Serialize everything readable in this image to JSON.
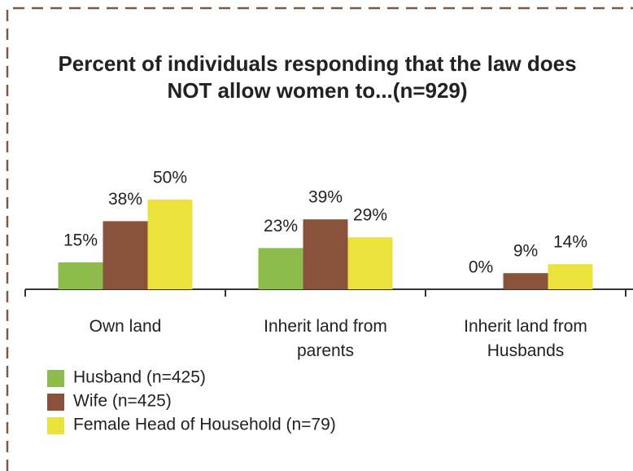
{
  "chart_data": {
    "type": "bar",
    "title": "Percent of individuals responding that the law does NOT allow women to...(n=929)",
    "categories": [
      "Own land",
      "Inherit land from parents",
      "Inherit land from Husbands"
    ],
    "series": [
      {
        "name": "Husband (n=425)",
        "color": "#8dbb4c",
        "values": [
          15,
          23,
          0
        ],
        "value_labels": [
          "15%",
          "23%",
          "0%"
        ]
      },
      {
        "name": "Wife (n=425)",
        "color": "#8a523b",
        "values": [
          38,
          39,
          9
        ],
        "value_labels": [
          "38%",
          "39%",
          "9%"
        ]
      },
      {
        "name": "Female Head of Household (n=79)",
        "color": "#ebe33c",
        "values": [
          50,
          29,
          14
        ],
        "value_labels": [
          "50%",
          "29%",
          "14%"
        ]
      }
    ],
    "legend": "bottom-left"
  }
}
